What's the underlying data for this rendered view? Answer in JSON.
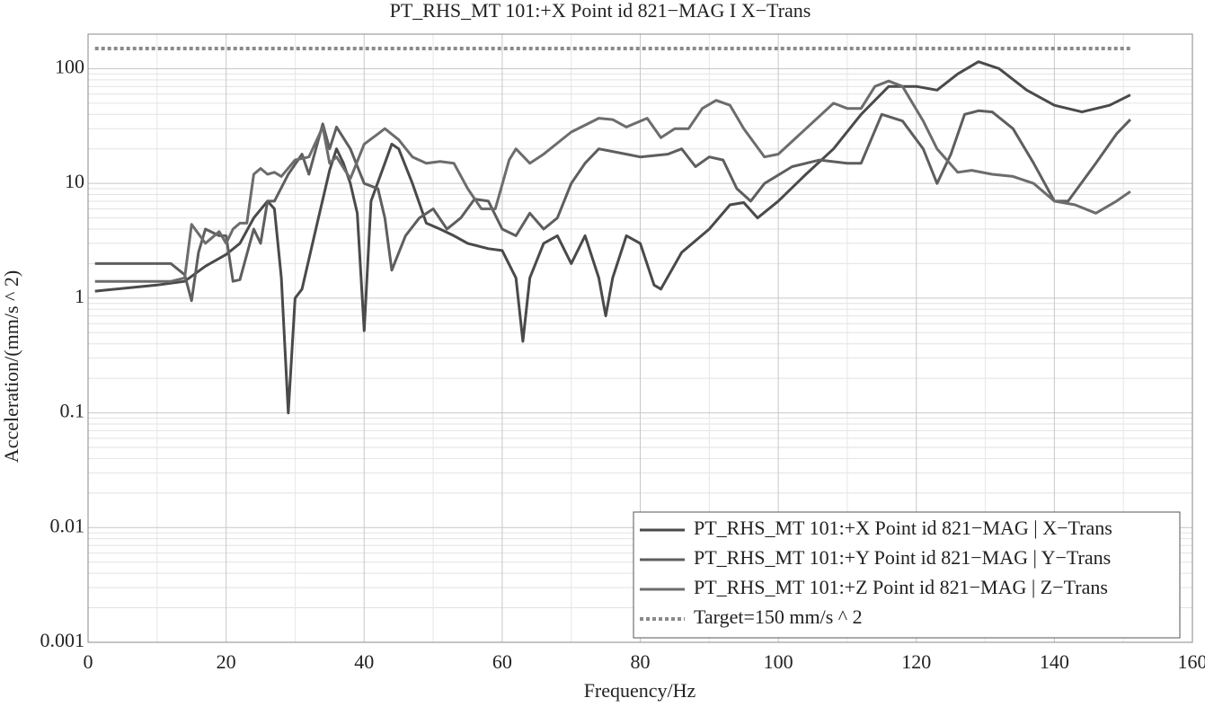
{
  "chart_data": {
    "type": "line",
    "title": "PT_RHS_MT 101:+X Point id 821−MAG I X−Trans",
    "xlabel": "Frequency/Hz",
    "ylabel": "Acceleration/(mm/s ^ 2)",
    "xlim": [
      0,
      160
    ],
    "ylim": [
      0.001,
      200
    ],
    "yscale": "log",
    "xticks": [
      0,
      20,
      40,
      60,
      80,
      100,
      120,
      140,
      160
    ],
    "xminorticks": [
      10,
      30,
      50,
      70,
      90,
      110,
      130,
      150
    ],
    "yticks": [
      0.001,
      0.01,
      0.1,
      1,
      10,
      100
    ],
    "yminorticks": [
      0.002,
      0.003,
      0.004,
      0.005,
      0.006,
      0.007,
      0.008,
      0.009,
      0.02,
      0.03,
      0.04,
      0.05,
      0.06,
      0.07,
      0.08,
      0.09,
      0.2,
      0.3,
      0.4,
      0.5,
      0.6,
      0.7,
      0.8,
      0.9,
      2,
      3,
      4,
      5,
      6,
      7,
      8,
      9,
      20,
      30,
      40,
      50,
      60,
      70,
      80,
      90,
      200
    ],
    "grid": true,
    "legend": "lower right",
    "series": [
      {
        "name": "PT_RHS_MT 101:+X Point id 821−MAG | X−Trans",
        "color": "#4a4a4a",
        "dash": "solid",
        "x": [
          1,
          10,
          14,
          17,
          20,
          22,
          24,
          26,
          27,
          28,
          29,
          30,
          31,
          33,
          35,
          36,
          37,
          38,
          39,
          40,
          41,
          43,
          44,
          45,
          47,
          49,
          51,
          53,
          55,
          58,
          60,
          62,
          63,
          64,
          66,
          68,
          70,
          72,
          74,
          75,
          76,
          78,
          80,
          82,
          83,
          86,
          90,
          93,
          95,
          97,
          100,
          104,
          108,
          112,
          116,
          120,
          123,
          126,
          129,
          132,
          136,
          140,
          144,
          148,
          151
        ],
        "values": [
          1.15,
          1.3,
          1.4,
          1.9,
          2.4,
          3,
          5,
          7,
          6,
          1.5,
          0.1,
          1,
          1.2,
          4,
          13,
          20,
          15,
          10,
          5.5,
          0.52,
          7,
          15,
          22,
          20,
          10,
          4.5,
          4,
          3.5,
          3,
          2.7,
          2.6,
          1.5,
          0.42,
          1.5,
          3,
          3.5,
          2,
          3.5,
          1.5,
          0.7,
          1.5,
          3.5,
          3,
          1.3,
          1.2,
          2.5,
          4,
          6.5,
          6.8,
          5,
          7,
          12,
          20,
          40,
          70,
          70,
          65,
          90,
          115,
          100,
          65,
          48,
          42,
          48,
          59
        ]
      },
      {
        "name": "PT_RHS_MT 101:+Y Point id 821−MAG | Y−Trans",
        "color": "#5e5e5e",
        "dash": "solid",
        "x": [
          1,
          12,
          14,
          15,
          16,
          17,
          19,
          20,
          21,
          22,
          24,
          25,
          26,
          27,
          29,
          31,
          32,
          34,
          35,
          36,
          38,
          40,
          42,
          43,
          44,
          46,
          48,
          50,
          52,
          54,
          56,
          58,
          60,
          62,
          64,
          66,
          68,
          70,
          72,
          74,
          78,
          80,
          84,
          86,
          88,
          90,
          92,
          94,
          96,
          98,
          102,
          106,
          110,
          112,
          115,
          118,
          121,
          123,
          125,
          127,
          129,
          131,
          134,
          137,
          140,
          142,
          146,
          149,
          151
        ],
        "values": [
          2.0,
          2.0,
          1.6,
          0.95,
          2.5,
          4,
          3.5,
          3.5,
          1.4,
          1.45,
          4,
          3,
          7,
          7,
          12,
          18,
          12,
          33,
          20,
          31,
          20,
          10,
          9,
          5,
          1.75,
          3.5,
          5,
          6,
          4,
          5,
          7.3,
          7,
          4,
          3.5,
          5.5,
          4,
          5,
          10,
          15,
          20,
          18,
          17,
          18,
          20,
          14,
          17,
          16,
          9,
          7,
          10,
          14,
          16,
          15,
          15,
          40,
          35,
          20,
          10,
          18,
          40,
          43,
          42,
          30,
          15,
          7,
          7,
          15,
          27,
          36
        ]
      },
      {
        "name": "PT_RHS_MT 101:+Z Point id 821−MAG | Z−Trans",
        "color": "#6c6c6c",
        "dash": "solid",
        "x": [
          1,
          12,
          14,
          15,
          17,
          19,
          20,
          21,
          22,
          23,
          24,
          25,
          26,
          27,
          28,
          30,
          32,
          34,
          35,
          36,
          38,
          40,
          42,
          43,
          45,
          47,
          49,
          51,
          53,
          55,
          57,
          59,
          61,
          62,
          64,
          66,
          70,
          74,
          76,
          78,
          81,
          83,
          85,
          87,
          89,
          91,
          93,
          95,
          98,
          100,
          104,
          108,
          110,
          112,
          114,
          116,
          118,
          121,
          123,
          126,
          128,
          131,
          134,
          137,
          140,
          143,
          146,
          149,
          151
        ],
        "values": [
          1.4,
          1.4,
          1.5,
          4.4,
          3,
          3.8,
          3,
          4,
          4.5,
          4.5,
          12,
          13.5,
          12,
          12.5,
          11.5,
          16,
          17,
          31,
          15,
          17,
          11,
          22,
          27,
          30,
          24,
          17,
          15,
          15.5,
          15,
          9,
          6,
          6,
          16,
          20,
          15,
          18,
          28,
          37,
          36,
          31,
          37,
          25,
          30,
          30,
          45,
          53,
          48,
          30,
          17,
          18,
          30,
          50,
          45,
          45,
          70,
          78,
          70,
          35,
          20,
          12.5,
          13,
          12,
          11.5,
          10,
          7,
          6.5,
          5.5,
          7,
          8.5
        ]
      },
      {
        "name": "Target=150 mm/s ^ 2",
        "color": "#8a8a8a",
        "dash": "dotted",
        "x": [
          1,
          151
        ],
        "values": [
          150,
          150
        ]
      }
    ]
  }
}
